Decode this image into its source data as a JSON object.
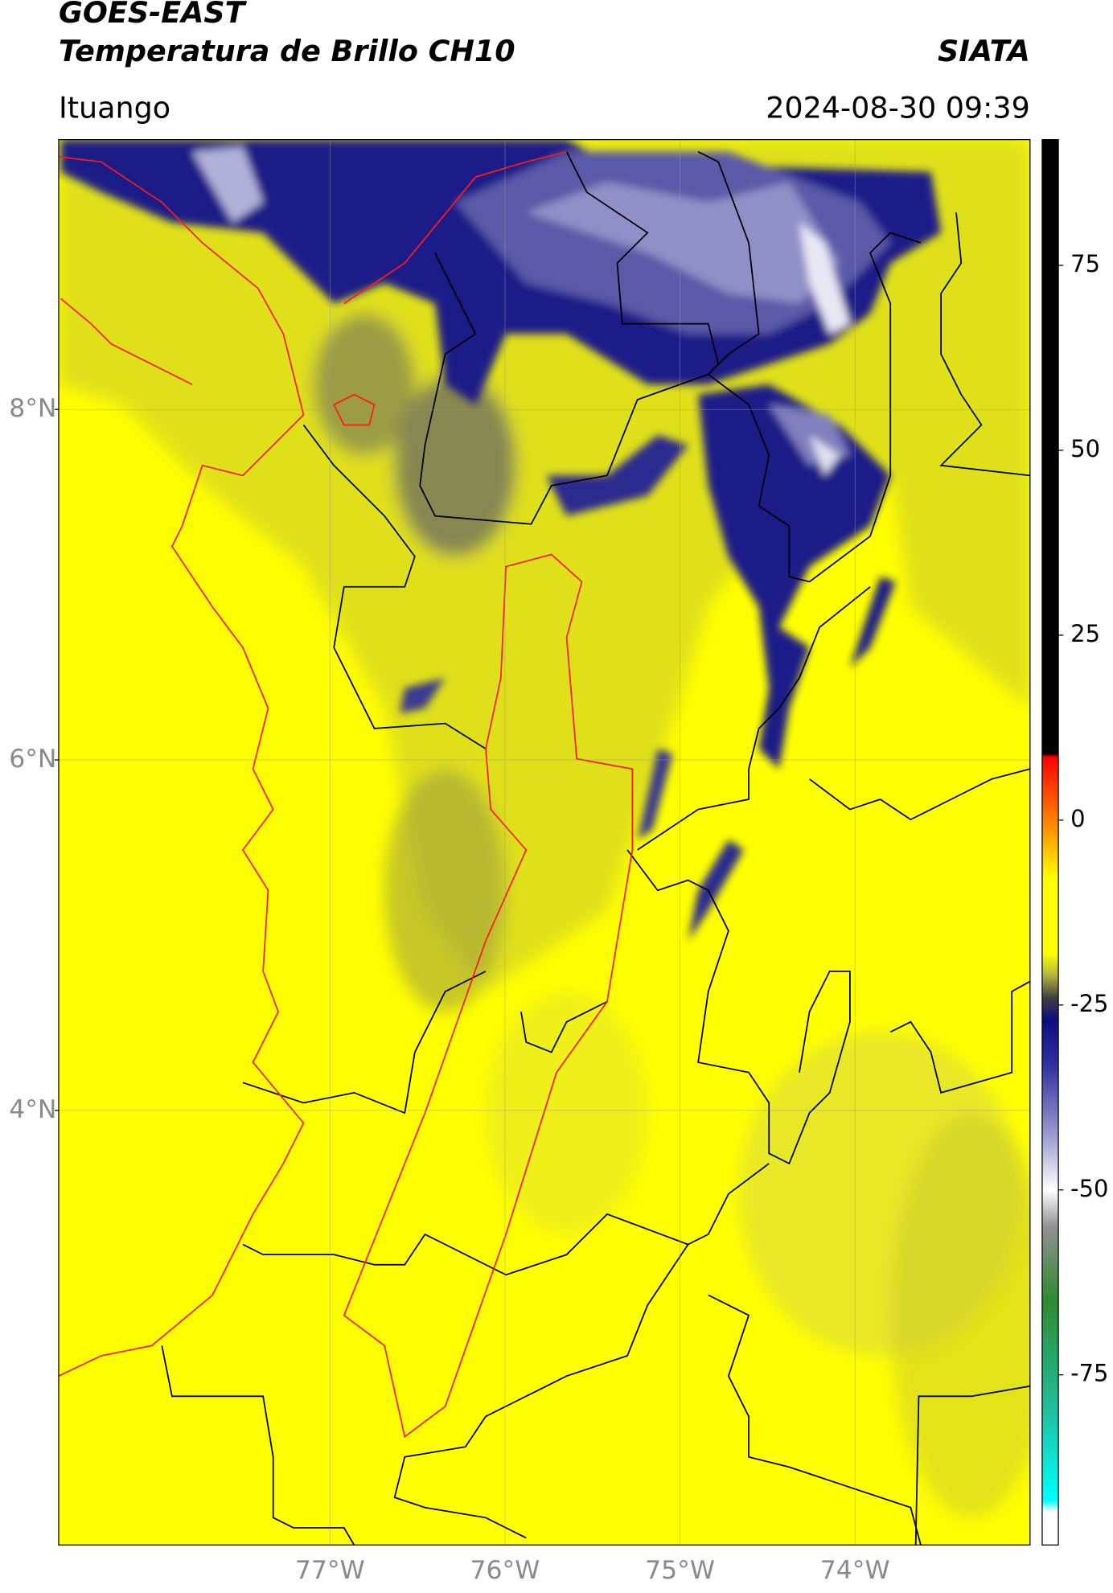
{
  "header": {
    "title": "GOES-EAST",
    "subtitle": "Temperatura de Brillo CH10",
    "source": "SIATA",
    "region": "Ituango",
    "timestamp": "2024-08-30 09:39"
  },
  "map": {
    "xlim": [
      -78.55,
      -73.0
    ],
    "ylim": [
      1.52,
      9.54
    ],
    "xticks": [
      {
        "value": -77,
        "label": "77°W"
      },
      {
        "value": -76,
        "label": "76°W"
      },
      {
        "value": -75,
        "label": "75°W"
      },
      {
        "value": -74,
        "label": "74°W"
      }
    ],
    "yticks": [
      {
        "value": 8,
        "label": "8°N"
      },
      {
        "value": 6,
        "label": "6°N"
      },
      {
        "value": 4,
        "label": "4°N"
      }
    ],
    "grid": true
  },
  "colorbar": {
    "clim": [
      -98,
      92
    ],
    "ticks": [
      75,
      50,
      25,
      0,
      -25,
      -50,
      -75
    ],
    "stops": [
      {
        "value": 92,
        "color": "#000000"
      },
      {
        "value": 9,
        "color": "#000000"
      },
      {
        "value": 8.5,
        "color": "#ff0000"
      },
      {
        "value": 0,
        "color": "#ff8000"
      },
      {
        "value": -8,
        "color": "#ffff00"
      },
      {
        "value": -18,
        "color": "#ffff00"
      },
      {
        "value": -21,
        "color": "#b3b340"
      },
      {
        "value": -24,
        "color": "#404040"
      },
      {
        "value": -27,
        "color": "#0d0d80"
      },
      {
        "value": -33,
        "color": "#3030a0"
      },
      {
        "value": -43,
        "color": "#a0a0d0"
      },
      {
        "value": -50,
        "color": "#ffffff"
      },
      {
        "value": -55,
        "color": "#909090"
      },
      {
        "value": -65,
        "color": "#2e8b2e"
      },
      {
        "value": -80,
        "color": "#20c0a0"
      },
      {
        "value": -92,
        "color": "#00ffff"
      },
      {
        "value": -93.5,
        "color": "#ffffff"
      },
      {
        "value": -98,
        "color": "#ffffff"
      }
    ]
  }
}
